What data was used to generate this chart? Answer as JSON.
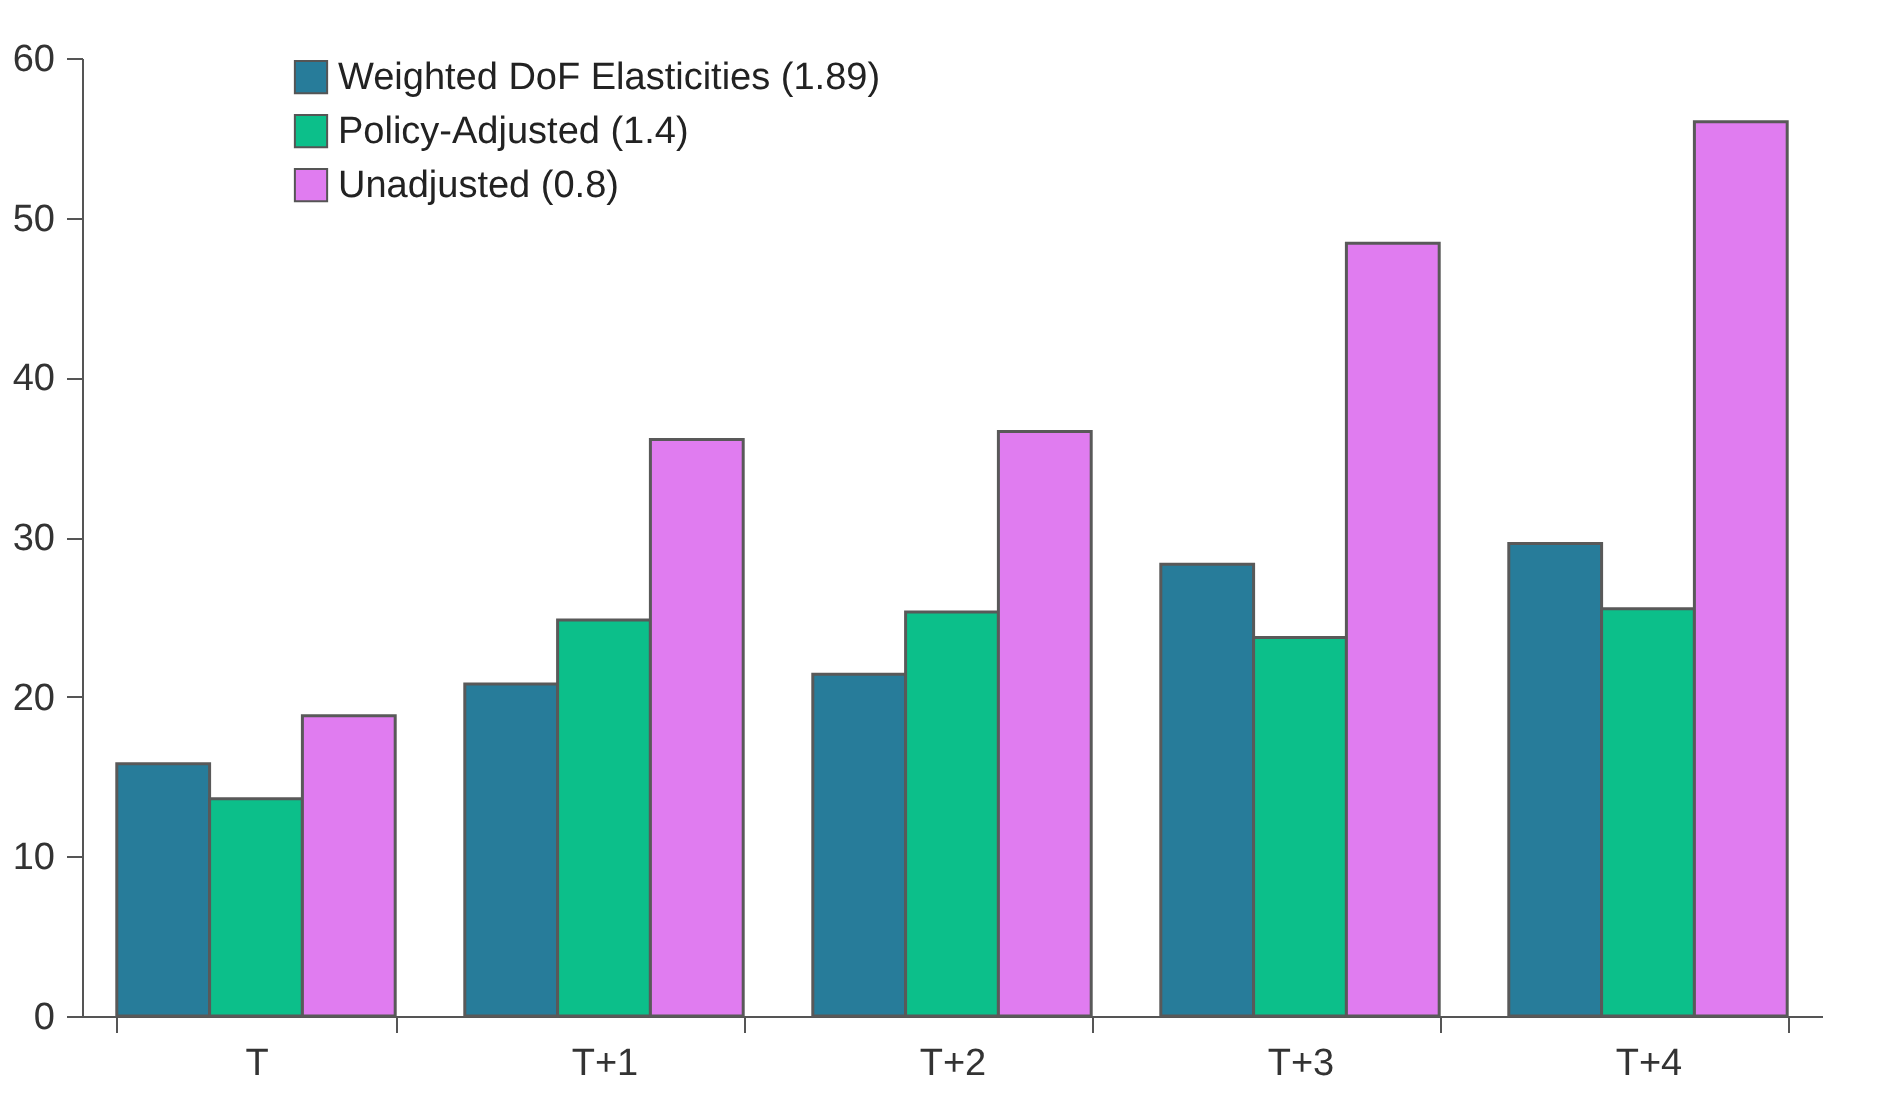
{
  "chart_data": {
    "type": "bar",
    "categories": [
      "T",
      "T+1",
      "T+2",
      "T+3",
      "T+4"
    ],
    "series": [
      {
        "name": "Weighted DoF Elasticities (1.89)",
        "color": "#277c9a",
        "values": [
          15.8,
          20.8,
          21.4,
          28.3,
          29.6
        ]
      },
      {
        "name": "Policy-Adjusted (1.4)",
        "color": "#0cbf8a",
        "values": [
          13.6,
          24.8,
          25.3,
          23.7,
          25.5
        ]
      },
      {
        "name": "Unadjusted (0.8)",
        "color": "#e07cf0",
        "values": [
          18.8,
          36.1,
          36.6,
          48.4,
          56.0
        ]
      }
    ],
    "ylim": [
      0,
      60
    ],
    "yticks": [
      0,
      10,
      20,
      30,
      40,
      50,
      60
    ],
    "grid": false,
    "legend": "top left"
  }
}
